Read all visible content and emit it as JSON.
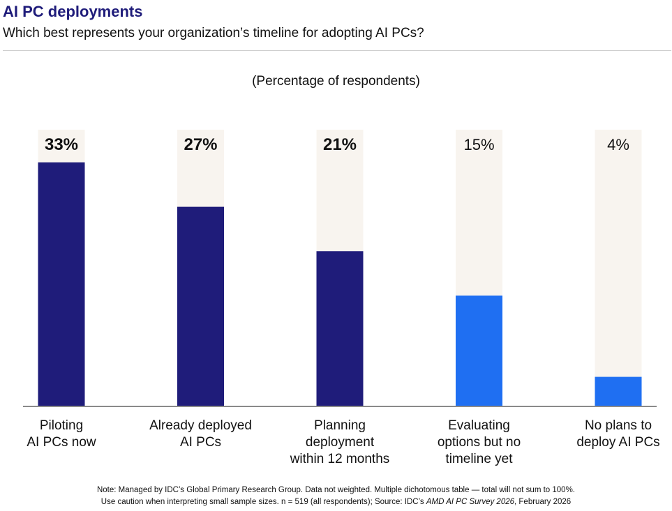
{
  "header": {
    "title": "AI PC deployments",
    "subtitle": "Which best represents your organization’s timeline for adopting AI PCs?"
  },
  "chart_data": {
    "type": "bar",
    "title": "AI PC deployments",
    "ylabel": "(Percentage of respondents)",
    "xlabel": "",
    "ylim": [
      0,
      37
    ],
    "grid": false,
    "categories": [
      [
        "Piloting",
        "AI PCs now"
      ],
      [
        "Already deployed",
        "AI PCs"
      ],
      [
        "Planning",
        "deployment",
        "within 12 months"
      ],
      [
        "Evaluating",
        "options but no",
        "timeline yet"
      ],
      [
        "No plans to",
        "deploy AI PCs"
      ]
    ],
    "values": [
      33,
      27,
      21,
      15,
      4
    ],
    "data_labels": [
      "33%",
      "27%",
      "21%",
      "15%",
      "4%"
    ],
    "label_bold": [
      true,
      true,
      true,
      false,
      false
    ],
    "bar_colors": [
      "#1f1c7a",
      "#1f1c7a",
      "#1f1c7a",
      "#1f6ff2",
      "#1f6ff2"
    ],
    "track_color": "#f8f4ef"
  },
  "footer": {
    "note_line1": "Note: Managed by IDC’s Global Primary Research Group. Data not weighted. Multiple dichotomous table — total will not sum to 100%.",
    "note_line2_prefix": "Use caution when interpreting small sample sizes. n = 519 (all respondents); Source: IDC’s ",
    "note_line2_source": "AMD AI PC Survey 2026",
    "note_line2_suffix": ", February 2026"
  }
}
